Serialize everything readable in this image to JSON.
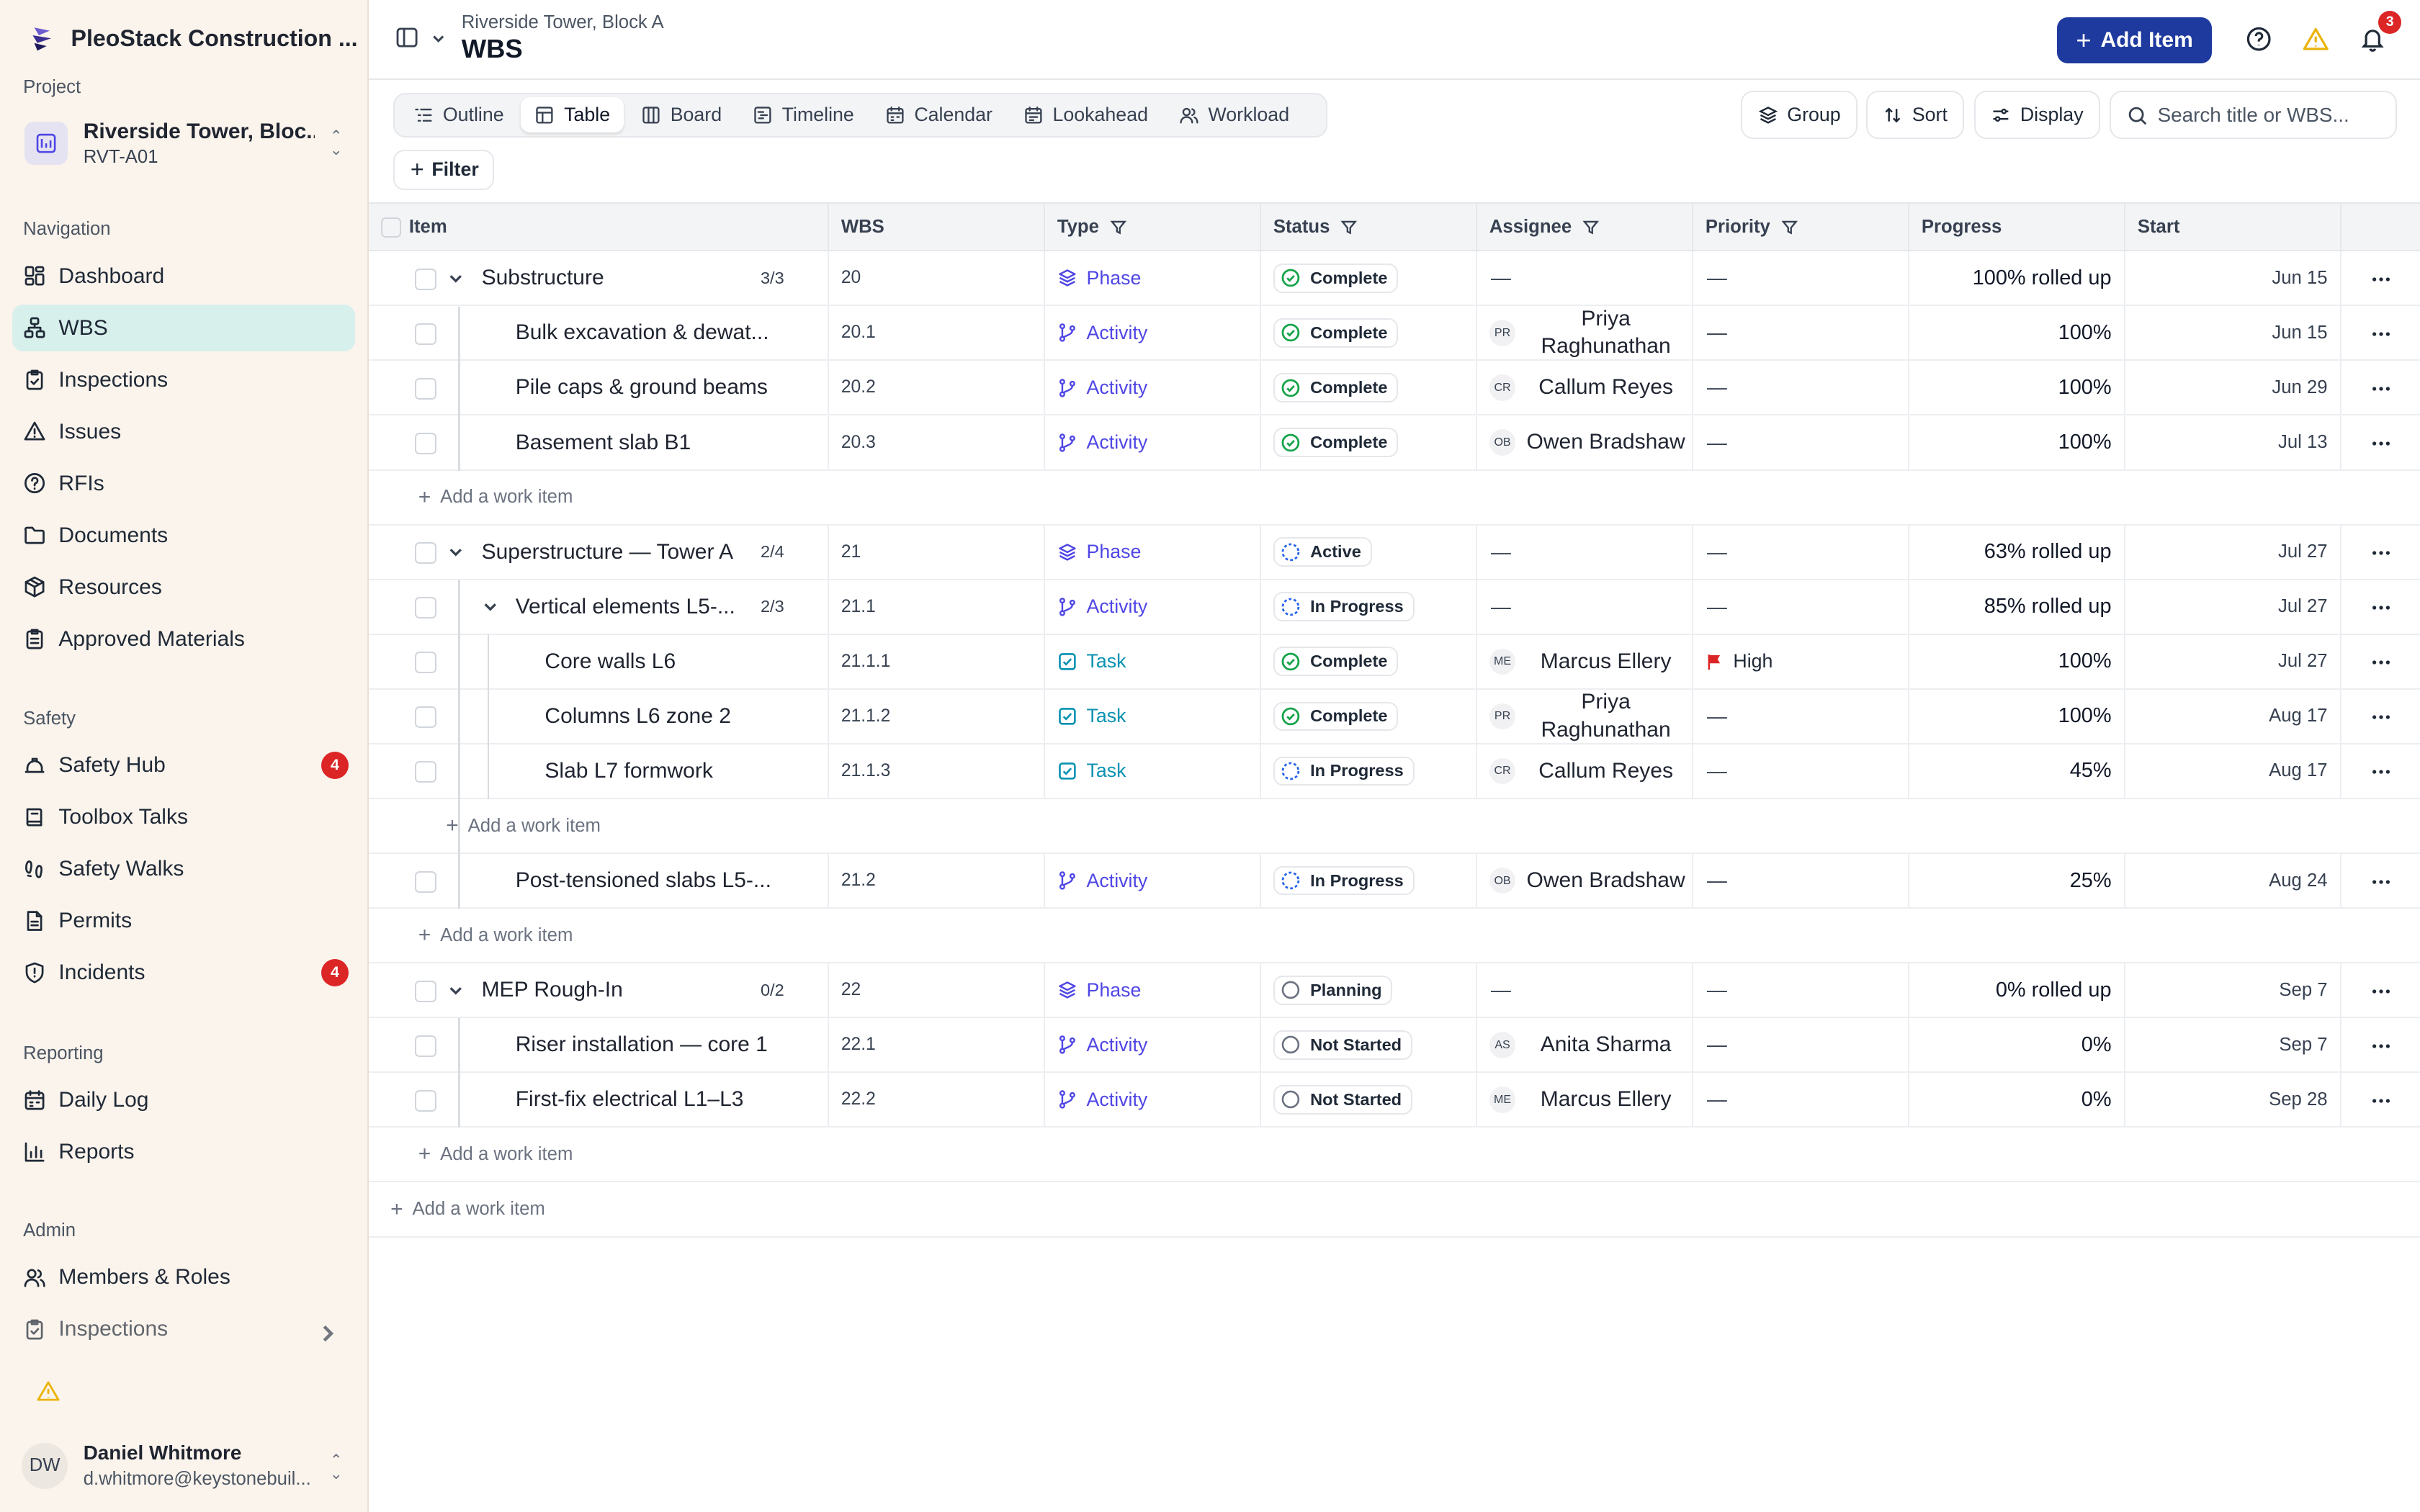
{
  "app": {
    "name": "PleoStack Construction ..."
  },
  "sidebar": {
    "project_label": "Project",
    "project": {
      "name": "Riverside Tower, Bloc...",
      "code": "RVT-A01"
    },
    "sections": {
      "navigation": "Navigation",
      "safety": "Safety",
      "reporting": "Reporting",
      "admin": "Admin"
    },
    "navigation": [
      {
        "label": "Dashboard",
        "icon": "dashboard-icon"
      },
      {
        "label": "WBS",
        "icon": "hierarchy-icon",
        "active": true
      },
      {
        "label": "Inspections",
        "icon": "clipboard-check-icon"
      },
      {
        "label": "Issues",
        "icon": "warning-icon"
      },
      {
        "label": "RFIs",
        "icon": "help-circle-icon"
      },
      {
        "label": "Documents",
        "icon": "folder-icon"
      },
      {
        "label": "Resources",
        "icon": "package-icon"
      },
      {
        "label": "Approved Materials",
        "icon": "clipboard-icon"
      }
    ],
    "safety": [
      {
        "label": "Safety Hub",
        "icon": "hardhat-icon",
        "badge": "4"
      },
      {
        "label": "Toolbox Talks",
        "icon": "book-icon"
      },
      {
        "label": "Safety Walks",
        "icon": "footprints-icon"
      },
      {
        "label": "Permits",
        "icon": "file-icon"
      },
      {
        "label": "Incidents",
        "icon": "shield-alert-icon",
        "badge": "4"
      }
    ],
    "reporting": [
      {
        "label": "Daily Log",
        "icon": "calendar-icon"
      },
      {
        "label": "Reports",
        "icon": "bar-chart-icon"
      }
    ],
    "admin": [
      {
        "label": "Members & Roles",
        "icon": "users-icon"
      },
      {
        "label": "Inspections",
        "icon": "clipboard-check-icon"
      }
    ],
    "user": {
      "initials": "DW",
      "name": "Daniel Whitmore",
      "email": "d.whitmore@keystonebuil..."
    }
  },
  "header": {
    "breadcrumb": "Riverside Tower, Block A",
    "title": "WBS",
    "add_item_label": "Add Item",
    "notification_count": "3"
  },
  "view_tabs": [
    {
      "label": "Outline",
      "icon": "outline-icon"
    },
    {
      "label": "Table",
      "icon": "table-icon",
      "active": true
    },
    {
      "label": "Board",
      "icon": "board-icon"
    },
    {
      "label": "Timeline",
      "icon": "timeline-icon"
    },
    {
      "label": "Calendar",
      "icon": "calendar-icon"
    },
    {
      "label": "Lookahead",
      "icon": "lookahead-icon"
    },
    {
      "label": "Workload",
      "icon": "workload-icon"
    }
  ],
  "controls": {
    "group": "Group",
    "sort": "Sort",
    "display": "Display",
    "search_placeholder": "Search title or WBS...",
    "filter": "Filter"
  },
  "columns": {
    "item": "Item",
    "wbs": "WBS",
    "type": "Type",
    "status": "Status",
    "assignee": "Assignee",
    "priority": "Priority",
    "progress": "Progress",
    "start": "Start"
  },
  "add_work_item_label": "Add a work item",
  "rows": [
    {
      "kind": "item",
      "level": 0,
      "expandable": true,
      "name": "Substructure",
      "count": "3/3",
      "wbs": "20",
      "type": "Phase",
      "status": "Complete",
      "assignee": null,
      "priority": null,
      "progress": "100% rolled up",
      "start": "Jun 15"
    },
    {
      "kind": "item",
      "level": 1,
      "name": "Bulk excavation & dewat...",
      "wbs": "20.1",
      "type": "Activity",
      "status": "Complete",
      "assignee": {
        "initials": "PR",
        "name": "Priya Raghunathan"
      },
      "priority": null,
      "progress": "100%",
      "start": "Jun 15"
    },
    {
      "kind": "item",
      "level": 1,
      "name": "Pile caps & ground beams",
      "wbs": "20.2",
      "type": "Activity",
      "status": "Complete",
      "assignee": {
        "initials": "CR",
        "name": "Callum Reyes"
      },
      "priority": null,
      "progress": "100%",
      "start": "Jun 29"
    },
    {
      "kind": "item",
      "level": 1,
      "name": "Basement slab B1",
      "wbs": "20.3",
      "type": "Activity",
      "status": "Complete",
      "assignee": {
        "initials": "OB",
        "name": "Owen Bradshaw"
      },
      "priority": null,
      "progress": "100%",
      "start": "Jul 13"
    },
    {
      "kind": "add",
      "level": 1
    },
    {
      "kind": "item",
      "level": 0,
      "expandable": true,
      "name": "Superstructure — Tower A",
      "count": "2/4",
      "wbs": "21",
      "type": "Phase",
      "status": "Active",
      "assignee": null,
      "priority": null,
      "progress": "63% rolled up",
      "start": "Jul 27"
    },
    {
      "kind": "item",
      "level": 1,
      "expandable": true,
      "name": "Vertical elements L5-...",
      "count": "2/3",
      "wbs": "21.1",
      "type": "Activity",
      "status": "In Progress",
      "assignee": null,
      "priority": null,
      "progress": "85% rolled up",
      "start": "Jul 27"
    },
    {
      "kind": "item",
      "level": 2,
      "name": "Core walls L6",
      "wbs": "21.1.1",
      "type": "Task",
      "status": "Complete",
      "assignee": {
        "initials": "ME",
        "name": "Marcus Ellery"
      },
      "priority": "High",
      "progress": "100%",
      "start": "Jul 27"
    },
    {
      "kind": "item",
      "level": 2,
      "name": "Columns L6 zone 2",
      "wbs": "21.1.2",
      "type": "Task",
      "status": "Complete",
      "assignee": {
        "initials": "PR",
        "name": "Priya Raghunathan"
      },
      "priority": null,
      "progress": "100%",
      "start": "Aug 17"
    },
    {
      "kind": "item",
      "level": 2,
      "name": "Slab L7 formwork",
      "wbs": "21.1.3",
      "type": "Task",
      "status": "In Progress",
      "assignee": {
        "initials": "CR",
        "name": "Callum Reyes"
      },
      "priority": null,
      "progress": "45%",
      "start": "Aug 17"
    },
    {
      "kind": "add",
      "level": 2
    },
    {
      "kind": "item",
      "level": 1,
      "name": "Post-tensioned slabs L5-...",
      "wbs": "21.2",
      "type": "Activity",
      "status": "In Progress",
      "assignee": {
        "initials": "OB",
        "name": "Owen Bradshaw"
      },
      "priority": null,
      "progress": "25%",
      "start": "Aug 24"
    },
    {
      "kind": "add",
      "level": 1
    },
    {
      "kind": "item",
      "level": 0,
      "expandable": true,
      "name": "MEP Rough-In",
      "count": "0/2",
      "wbs": "22",
      "type": "Phase",
      "status": "Planning",
      "assignee": null,
      "priority": null,
      "progress": "0% rolled up",
      "start": "Sep 7"
    },
    {
      "kind": "item",
      "level": 1,
      "name": "Riser installation — core 1",
      "wbs": "22.1",
      "type": "Activity",
      "status": "Not Started",
      "assignee": {
        "initials": "AS",
        "name": "Anita Sharma"
      },
      "priority": null,
      "progress": "0%",
      "start": "Sep 7"
    },
    {
      "kind": "item",
      "level": 1,
      "name": "First-fix electrical L1–L3",
      "wbs": "22.2",
      "type": "Activity",
      "status": "Not Started",
      "assignee": {
        "initials": "ME",
        "name": "Marcus Ellery"
      },
      "priority": null,
      "progress": "0%",
      "start": "Sep 28"
    },
    {
      "kind": "add",
      "level": 1
    },
    {
      "kind": "add",
      "level": -1
    }
  ],
  "empty_value": "—",
  "colors": {
    "accent": "#1e3a9e",
    "active_nav": "#d8f0ec",
    "sidebar_bg": "#fbf4ec",
    "badge": "#dc2626",
    "phase": "#4f46e5",
    "task": "#0891b2",
    "complete": "#16a34a",
    "in_progress": "#2563eb",
    "warning": "#eab308"
  }
}
